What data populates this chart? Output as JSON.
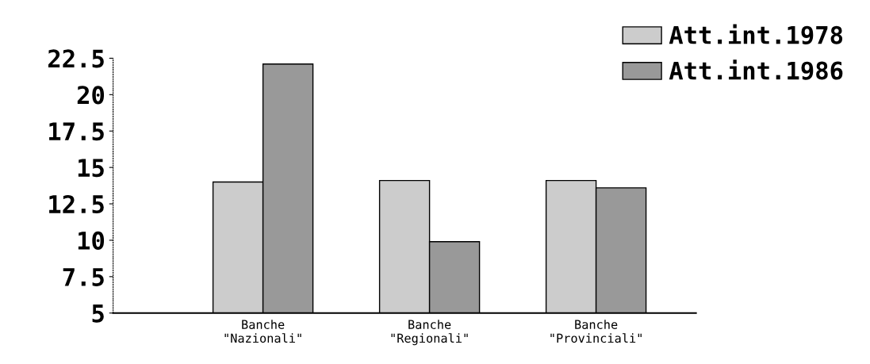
{
  "chart_data": {
    "type": "bar",
    "categories": [
      "Banche\n\"Nazionali\"",
      "Banche\n\"Regionali\"",
      "Banche\n\"Provinciali\""
    ],
    "series": [
      {
        "name": "Att.int.1978",
        "color": "#cccccc",
        "values": [
          14.0,
          14.1,
          14.1
        ]
      },
      {
        "name": "Att.int.1986",
        "color": "#999999",
        "values": [
          22.1,
          9.9,
          13.6
        ]
      }
    ],
    "ylim": [
      5,
      22.5
    ],
    "yticks": [
      5,
      7.5,
      10,
      12.5,
      15,
      17.5,
      20,
      22.5
    ],
    "grid": false,
    "legend": "top right"
  }
}
